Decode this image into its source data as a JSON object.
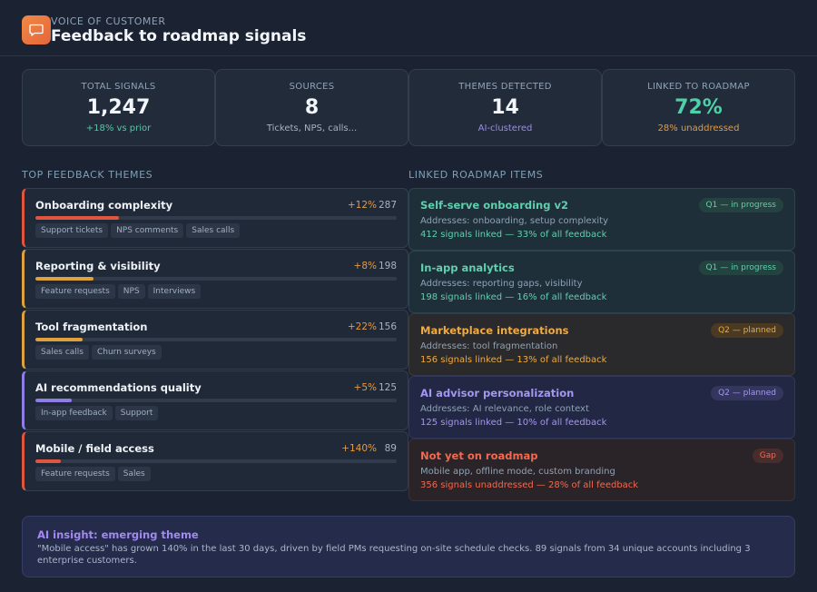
{
  "header": {
    "eyebrow": "VOICE OF CUSTOMER",
    "title": "Feedback to roadmap signals",
    "logo_icon": "chat-bubble-icon",
    "accent": "#ee7a40"
  },
  "stats": [
    {
      "label": "TOTAL SIGNALS",
      "value": "1,247",
      "sub": "+18% vs prior",
      "value_color": "#f2f5f9",
      "sub_color": "#55c8a6"
    },
    {
      "label": "SOURCES",
      "value": "8",
      "sub": "Tickets, NPS, calls...",
      "value_color": "#f2f5f9",
      "sub_color": "#a5b3c3"
    },
    {
      "label": "THEMES DETECTED",
      "value": "14",
      "sub": "AI-clustered",
      "value_color": "#f2f5f9",
      "sub_color": "#9a8cf0"
    },
    {
      "label": "LINKED TO ROADMAP",
      "value": "72%",
      "sub": "28% unaddressed",
      "value_color": "#4fd0a8",
      "sub_color": "#e89a3c"
    }
  ],
  "themes_title": "TOP FEEDBACK THEMES",
  "roadmap_title": "LINKED ROADMAP ITEMS",
  "themes": [
    {
      "name": "Onboarding complexity",
      "delta": "+12%",
      "count": "287",
      "fill": 0.23,
      "color": "#e0553d",
      "tags": [
        "Support tickets",
        "NPS comments",
        "Sales calls"
      ]
    },
    {
      "name": "Reporting & visibility",
      "delta": "+8%",
      "count": "198",
      "fill": 0.16,
      "color": "#e0a13c",
      "tags": [
        "Feature requests",
        "NPS",
        "Interviews"
      ]
    },
    {
      "name": "Tool fragmentation",
      "delta": "+22%",
      "count": "156",
      "fill": 0.13,
      "color": "#e0a13c",
      "tags": [
        "Sales calls",
        "Churn surveys"
      ]
    },
    {
      "name": "AI recommendations quality",
      "delta": "+5%",
      "count": "125",
      "fill": 0.1,
      "color": "#8d7fe6",
      "tags": [
        "In-app feedback",
        "Support"
      ]
    },
    {
      "name": "Mobile / field access",
      "delta": "+140%",
      "count": "89",
      "fill": 0.07,
      "color": "#e0553d",
      "tags": [
        "Feature requests",
        "Sales"
      ]
    }
  ],
  "roadmap": [
    {
      "name": "Self-serve onboarding v2",
      "badge": "Q1 — in progress",
      "addr": "Addresses: onboarding, setup complexity",
      "linked": "412 signals linked — 33% of all feedback",
      "accent": "#5fd0ae",
      "bg": "#1f2f3a",
      "border": "#2c4450",
      "badge_bg": "#24423f"
    },
    {
      "name": "In-app analytics",
      "badge": "Q1 — in progress",
      "addr": "Addresses: reporting gaps, visibility",
      "linked": "198 signals linked — 16% of all feedback",
      "accent": "#5fd0ae",
      "bg": "#1f2f3a",
      "border": "#2c4450",
      "badge_bg": "#24423f"
    },
    {
      "name": "Marketplace integrations",
      "badge": "Q2 — planned",
      "addr": "Addresses: tool fragmentation",
      "linked": "156 signals linked — 13% of all feedback",
      "accent": "#eeaa44",
      "bg": "#2a2a2c",
      "border": "#3b3a38",
      "badge_bg": "#4a3a22"
    },
    {
      "name": "AI advisor personalization",
      "badge": "Q2 — planned",
      "addr": "Addresses: AI relevance, role context",
      "linked": "125 signals linked — 10% of all feedback",
      "accent": "#a596f2",
      "bg": "#222743",
      "border": "#30375a",
      "badge_bg": "#33375e"
    },
    {
      "name": "Not yet on roadmap",
      "badge": "Gap",
      "addr": "Mobile app, offline mode, custom branding",
      "linked": "356 signals unaddressed — 28% of all feedback",
      "accent": "#ef6a52",
      "bg": "#2a2429",
      "border": "#3b3036",
      "badge_bg": "#4a2c2c"
    }
  ],
  "insight": {
    "title": "AI insight: emerging theme",
    "text": "\"Mobile access\" has grown 140% in the last 30 days, driven by field PMs requesting on-site schedule checks. 89 signals from 34 unique accounts including 3 enterprise customers."
  }
}
